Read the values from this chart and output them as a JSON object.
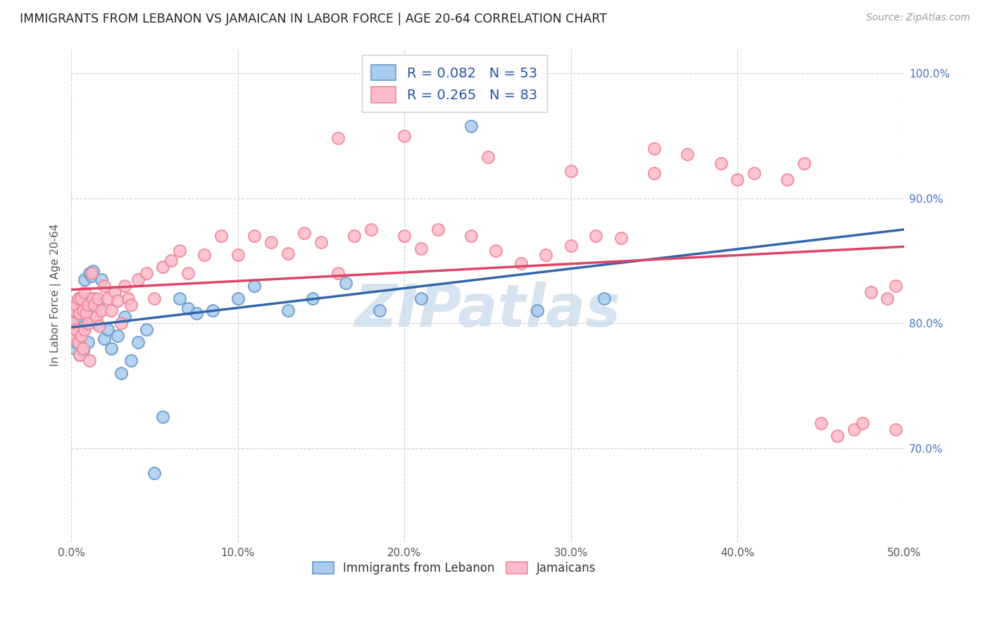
{
  "title": "IMMIGRANTS FROM LEBANON VS JAMAICAN IN LABOR FORCE | AGE 20-64 CORRELATION CHART",
  "source_text": "Source: ZipAtlas.com",
  "ylabel": "In Labor Force | Age 20-64",
  "xlim": [
    0.0,
    0.5
  ],
  "ylim": [
    0.625,
    1.02
  ],
  "xtick_vals": [
    0.0,
    0.1,
    0.2,
    0.3,
    0.4,
    0.5
  ],
  "ytick_vals": [
    0.7,
    0.8,
    0.9,
    1.0
  ],
  "ytick_labels": [
    "70.0%",
    "80.0%",
    "90.0%",
    "100.0%"
  ],
  "xtick_labels": [
    "0.0%",
    "10.0%",
    "20.0%",
    "30.0%",
    "40.0%",
    "50.0%"
  ],
  "background_color": "#ffffff",
  "grid_color": "#cccccc",
  "watermark": "ZIPatlas",
  "watermark_color": "#c5d8ea",
  "series": [
    {
      "name": "Immigrants from Lebanon",
      "R": 0.082,
      "N": 53,
      "scatter_color": "#aaccee",
      "edge_color": "#6699cc",
      "line_color": "#3366aa"
    },
    {
      "name": "Jamaicans",
      "R": 0.265,
      "N": 83,
      "scatter_color": "#ffbbcc",
      "edge_color": "#ee8899",
      "line_color": "#dd4466"
    }
  ],
  "leb_x": [
    0.001,
    0.001,
    0.002,
    0.002,
    0.003,
    0.003,
    0.003,
    0.004,
    0.004,
    0.005,
    0.005,
    0.006,
    0.006,
    0.006,
    0.007,
    0.007,
    0.008,
    0.008,
    0.009,
    0.01,
    0.01,
    0.011,
    0.012,
    0.013,
    0.014,
    0.015,
    0.016,
    0.018,
    0.02,
    0.022,
    0.024,
    0.028,
    0.03,
    0.032,
    0.036,
    0.04,
    0.045,
    0.05,
    0.055,
    0.065,
    0.07,
    0.075,
    0.085,
    0.1,
    0.11,
    0.13,
    0.145,
    0.165,
    0.185,
    0.21,
    0.24,
    0.28,
    0.32
  ],
  "leb_y": [
    0.8,
    0.79,
    0.81,
    0.78,
    0.815,
    0.798,
    0.785,
    0.808,
    0.795,
    0.82,
    0.775,
    0.815,
    0.79,
    0.8,
    0.81,
    0.778,
    0.835,
    0.798,
    0.81,
    0.82,
    0.785,
    0.84,
    0.838,
    0.842,
    0.82,
    0.8,
    0.815,
    0.835,
    0.788,
    0.795,
    0.78,
    0.79,
    0.76,
    0.805,
    0.77,
    0.785,
    0.795,
    0.68,
    0.725,
    0.82,
    0.812,
    0.808,
    0.81,
    0.82,
    0.83,
    0.81,
    0.82,
    0.832,
    0.81,
    0.82,
    0.958,
    0.81,
    0.82
  ],
  "jam_x": [
    0.001,
    0.002,
    0.002,
    0.003,
    0.003,
    0.004,
    0.004,
    0.005,
    0.005,
    0.006,
    0.006,
    0.007,
    0.007,
    0.008,
    0.008,
    0.009,
    0.01,
    0.01,
    0.011,
    0.012,
    0.013,
    0.014,
    0.015,
    0.016,
    0.017,
    0.018,
    0.02,
    0.022,
    0.024,
    0.026,
    0.028,
    0.03,
    0.032,
    0.034,
    0.036,
    0.04,
    0.045,
    0.05,
    0.055,
    0.06,
    0.065,
    0.07,
    0.08,
    0.09,
    0.1,
    0.11,
    0.12,
    0.13,
    0.14,
    0.15,
    0.16,
    0.17,
    0.18,
    0.2,
    0.21,
    0.22,
    0.24,
    0.255,
    0.27,
    0.285,
    0.3,
    0.315,
    0.33,
    0.35,
    0.37,
    0.39,
    0.41,
    0.43,
    0.45,
    0.47,
    0.48,
    0.49,
    0.495,
    0.16,
    0.2,
    0.25,
    0.3,
    0.35,
    0.4,
    0.44,
    0.46,
    0.475,
    0.495
  ],
  "jam_y": [
    0.8,
    0.81,
    0.79,
    0.815,
    0.795,
    0.82,
    0.785,
    0.808,
    0.775,
    0.82,
    0.79,
    0.81,
    0.78,
    0.825,
    0.795,
    0.808,
    0.8,
    0.815,
    0.77,
    0.84,
    0.82,
    0.815,
    0.805,
    0.82,
    0.798,
    0.81,
    0.83,
    0.82,
    0.81,
    0.825,
    0.818,
    0.8,
    0.83,
    0.82,
    0.815,
    0.835,
    0.84,
    0.82,
    0.845,
    0.85,
    0.858,
    0.84,
    0.855,
    0.87,
    0.855,
    0.87,
    0.865,
    0.856,
    0.872,
    0.865,
    0.84,
    0.87,
    0.875,
    0.87,
    0.86,
    0.875,
    0.87,
    0.858,
    0.848,
    0.855,
    0.862,
    0.87,
    0.868,
    0.94,
    0.935,
    0.928,
    0.92,
    0.915,
    0.72,
    0.715,
    0.825,
    0.82,
    0.83,
    0.948,
    0.95,
    0.933,
    0.922,
    0.92,
    0.915,
    0.928,
    0.71,
    0.72,
    0.715
  ]
}
